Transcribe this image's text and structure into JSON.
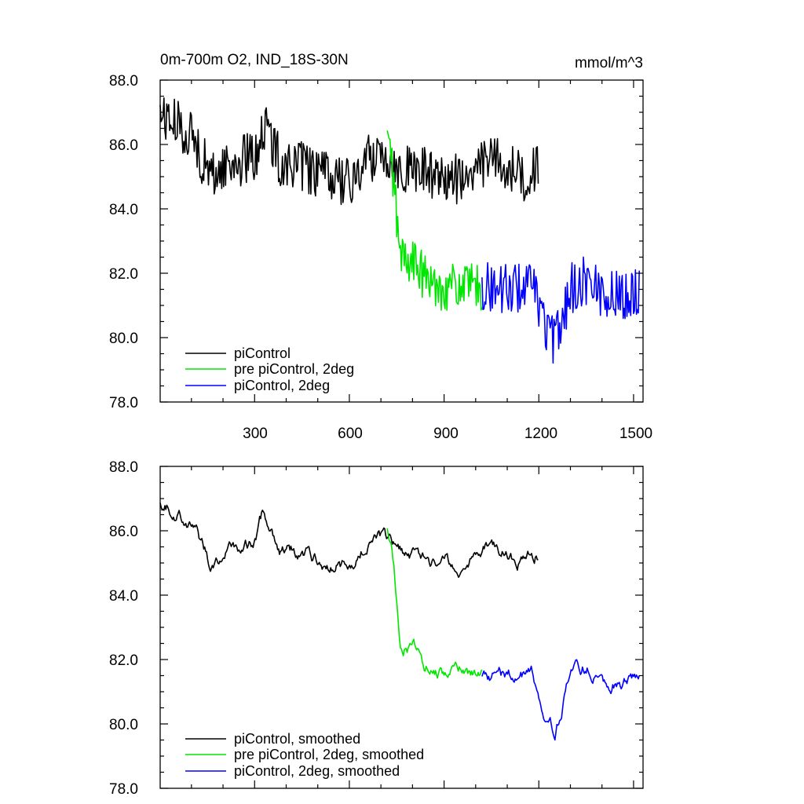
{
  "chart_data": [
    {
      "type": "line",
      "title": "0m-700m O2, IND_18S-30N",
      "units": "mmol/m^3",
      "xlim": [
        1,
        1530
      ],
      "ylim": [
        78,
        88
      ],
      "x_ticks": [
        300,
        600,
        900,
        1200,
        1500
      ],
      "x_tick_labels": [
        "300",
        "600",
        "900",
        "1200",
        "1500"
      ],
      "y_ticks": [
        78,
        80,
        82,
        84,
        86,
        88
      ],
      "y_tick_labels": [
        "78.0",
        "80.0",
        "82.0",
        "84.0",
        "86.0",
        "88.0"
      ],
      "legend_position": "bottom-left",
      "grid": false,
      "series": [
        {
          "name": "piControl",
          "color": "#000000",
          "x_start": 1,
          "x_end": 1200,
          "waypoints": [
            [
              1,
              87.0
            ],
            [
              50,
              86.6
            ],
            [
              100,
              86.3
            ],
            [
              160,
              85.0
            ],
            [
              220,
              85.4
            ],
            [
              300,
              85.6
            ],
            [
              330,
              86.6
            ],
            [
              380,
              85.5
            ],
            [
              450,
              85.3
            ],
            [
              520,
              85.0
            ],
            [
              580,
              84.9
            ],
            [
              600,
              84.7
            ],
            [
              650,
              85.5
            ],
            [
              700,
              85.8
            ],
            [
              760,
              85.3
            ],
            [
              820,
              85.2
            ],
            [
              900,
              85.0
            ],
            [
              960,
              84.9
            ],
            [
              1050,
              85.6
            ],
            [
              1150,
              85.0
            ],
            [
              1200,
              85.3
            ]
          ],
          "noise": 0.8
        },
        {
          "name": "pre piControl, 2deg",
          "color": "#00e600",
          "x_start": 720,
          "x_end": 1020,
          "waypoints": [
            [
              720,
              86.2
            ],
            [
              740,
              85.0
            ],
            [
              760,
              82.5
            ],
            [
              800,
              82.4
            ],
            [
              840,
              81.8
            ],
            [
              880,
              81.6
            ],
            [
              950,
              81.6
            ],
            [
              1020,
              81.5
            ]
          ],
          "noise": 0.75
        },
        {
          "name": "piControl, 2deg",
          "color": "#0000ff",
          "x_start": 1020,
          "x_end": 1520,
          "waypoints": [
            [
              1020,
              81.6
            ],
            [
              1100,
              81.5
            ],
            [
              1180,
              81.6
            ],
            [
              1220,
              80.4
            ],
            [
              1250,
              79.8
            ],
            [
              1300,
              81.5
            ],
            [
              1350,
              81.8
            ],
            [
              1420,
              81.3
            ],
            [
              1520,
              81.4
            ]
          ],
          "noise": 0.8
        }
      ]
    },
    {
      "type": "line",
      "xlim": [
        1,
        1530
      ],
      "ylim": [
        78,
        88
      ],
      "x_ticks": [
        300,
        600,
        900,
        1200,
        1500
      ],
      "y_ticks": [
        78,
        80,
        82,
        84,
        86,
        88
      ],
      "y_tick_labels": [
        "78.0",
        "80.0",
        "82.0",
        "84.0",
        "86.0",
        "88.0"
      ],
      "legend_position": "bottom-left",
      "grid": false,
      "series": [
        {
          "name": "piControl, smoothed",
          "color": "#000000",
          "x_start": 1,
          "x_end": 1200,
          "waypoints": [
            [
              1,
              87.0
            ],
            [
              50,
              86.6
            ],
            [
              100,
              86.3
            ],
            [
              160,
              85.0
            ],
            [
              220,
              85.4
            ],
            [
              300,
              85.6
            ],
            [
              330,
              86.6
            ],
            [
              380,
              85.5
            ],
            [
              450,
              85.3
            ],
            [
              520,
              85.0
            ],
            [
              580,
              84.9
            ],
            [
              600,
              84.7
            ],
            [
              650,
              85.5
            ],
            [
              700,
              85.8
            ],
            [
              760,
              85.3
            ],
            [
              820,
              85.2
            ],
            [
              900,
              85.0
            ],
            [
              960,
              84.9
            ],
            [
              1050,
              85.6
            ],
            [
              1150,
              85.0
            ],
            [
              1200,
              85.3
            ]
          ],
          "noise": 0.3
        },
        {
          "name": "pre piControl, 2deg, smoothed",
          "color": "#00e600",
          "x_start": 720,
          "x_end": 1020,
          "waypoints": [
            [
              720,
              86.2
            ],
            [
              740,
              85.0
            ],
            [
              760,
              82.5
            ],
            [
              800,
              82.4
            ],
            [
              840,
              81.8
            ],
            [
              880,
              81.6
            ],
            [
              950,
              81.6
            ],
            [
              1020,
              81.5
            ]
          ],
          "noise": 0.3
        },
        {
          "name": "piControl, 2deg, smoothed",
          "color": "#0000ff",
          "x_start": 1020,
          "x_end": 1520,
          "waypoints": [
            [
              1020,
              81.6
            ],
            [
              1100,
              81.5
            ],
            [
              1180,
              81.6
            ],
            [
              1220,
              80.4
            ],
            [
              1250,
              79.8
            ],
            [
              1300,
              81.5
            ],
            [
              1350,
              81.8
            ],
            [
              1420,
              81.3
            ],
            [
              1520,
              81.4
            ]
          ],
          "noise": 0.3
        }
      ]
    }
  ]
}
